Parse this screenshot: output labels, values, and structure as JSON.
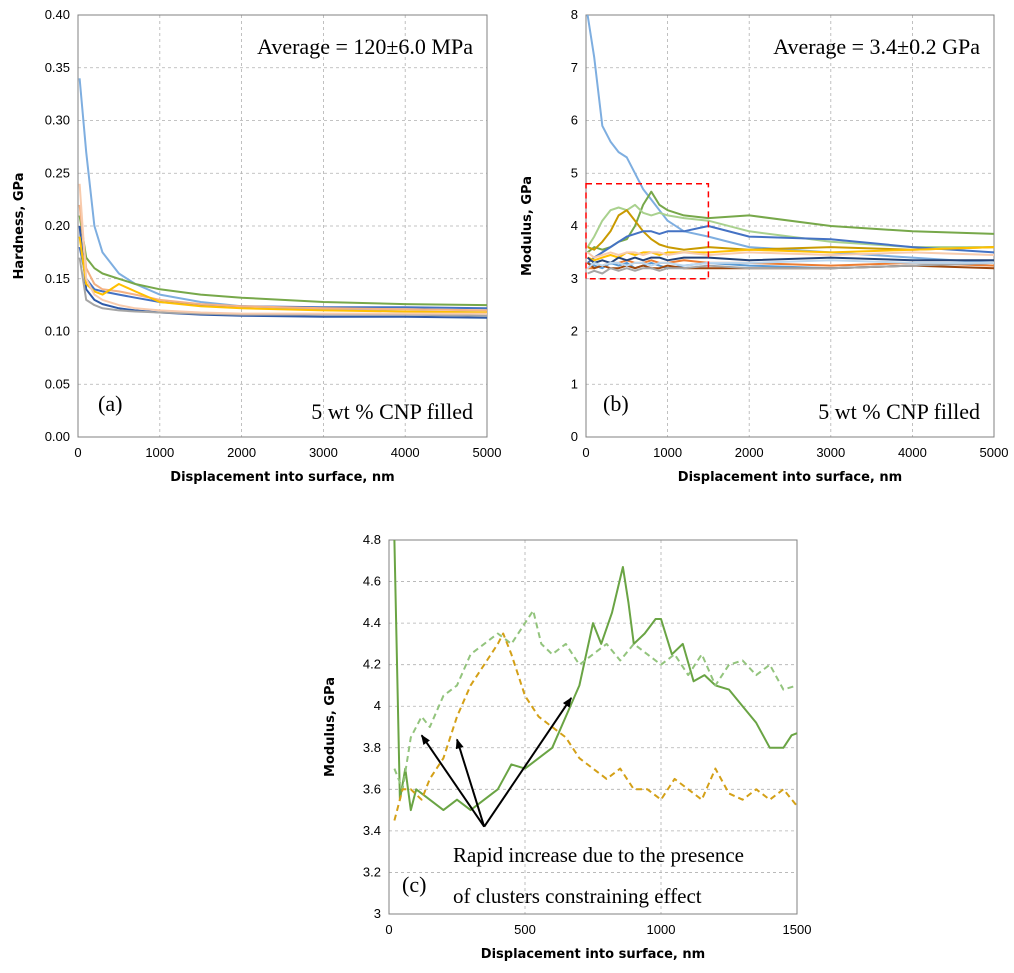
{
  "colors": {
    "a_series": [
      "#7eaee0",
      "#77a84a",
      "#4472c4",
      "#2e5aa8",
      "#f4b183",
      "#ffc000",
      "#a5a5a5",
      "#f8cbad",
      "#5b9bd5",
      "#70ad47",
      "#c9a227",
      "#9dc3e6"
    ],
    "b_series": [
      "#7eaee0",
      "#77a84a",
      "#a9d18e",
      "#c99a00",
      "#4472c4",
      "#ed7d31",
      "#ffc000",
      "#f8cbad",
      "#5b9bd5",
      "#9e480e",
      "#a5a5a5",
      "#264478",
      "#bdd7ee"
    ],
    "c_solid": "#6aa444",
    "c_dash_light": "#93c47d",
    "c_dash_gold": "#d4a017",
    "box": "#ff0000"
  },
  "chart_data": [
    {
      "id": "a",
      "type": "line",
      "xlabel": "Displacement into surface, nm",
      "ylabel": "Hardness, GPa",
      "xlim": [
        0,
        5000
      ],
      "ylim": [
        0,
        0.4
      ],
      "xticks": [
        "0",
        "1000",
        "2000",
        "3000",
        "4000",
        "5000"
      ],
      "yticks": [
        "0.00",
        "0.05",
        "0.10",
        "0.15",
        "0.20",
        "0.25",
        "0.30",
        "0.35",
        "0.40"
      ],
      "annotation_top": "Average = 120±6.0 MPa",
      "annotation_bottom": "5 wt % CNP filled",
      "panel_label": "(a)",
      "grid": true,
      "series": [
        {
          "x": [
            20,
            100,
            200,
            300,
            500,
            700,
            1000,
            1500,
            2000,
            3000,
            4000,
            5000
          ],
          "values": [
            0.34,
            0.27,
            0.2,
            0.175,
            0.155,
            0.145,
            0.135,
            0.128,
            0.124,
            0.121,
            0.119,
            0.118
          ]
        },
        {
          "x": [
            20,
            100,
            200,
            300,
            500,
            700,
            1000,
            1500,
            2000,
            3000,
            4000,
            5000
          ],
          "values": [
            0.21,
            0.17,
            0.16,
            0.155,
            0.15,
            0.145,
            0.14,
            0.135,
            0.132,
            0.128,
            0.126,
            0.125
          ]
        },
        {
          "x": [
            20,
            100,
            200,
            300,
            500,
            700,
            1000,
            1500,
            2000,
            3000,
            4000,
            5000
          ],
          "values": [
            0.18,
            0.15,
            0.14,
            0.138,
            0.135,
            0.132,
            0.128,
            0.125,
            0.124,
            0.123,
            0.123,
            0.122
          ]
        },
        {
          "x": [
            20,
            100,
            200,
            300,
            500,
            700,
            1000,
            1500,
            2000,
            3000,
            4000,
            5000
          ],
          "values": [
            0.2,
            0.14,
            0.13,
            0.126,
            0.122,
            0.12,
            0.118,
            0.116,
            0.115,
            0.114,
            0.114,
            0.113
          ]
        },
        {
          "x": [
            20,
            100,
            200,
            300,
            500,
            700,
            1000,
            1500,
            2000,
            3000,
            4000,
            5000
          ],
          "values": [
            0.22,
            0.16,
            0.145,
            0.14,
            0.138,
            0.135,
            0.13,
            0.126,
            0.124,
            0.122,
            0.121,
            0.12
          ]
        },
        {
          "x": [
            20,
            100,
            200,
            300,
            500,
            700,
            1000,
            1500,
            2000,
            3000,
            4000,
            5000
          ],
          "values": [
            0.19,
            0.145,
            0.138,
            0.135,
            0.145,
            0.138,
            0.128,
            0.124,
            0.122,
            0.12,
            0.119,
            0.118
          ]
        },
        {
          "x": [
            20,
            100,
            200,
            300,
            500,
            700,
            1000,
            1500,
            2000,
            3000,
            4000,
            5000
          ],
          "values": [
            0.17,
            0.13,
            0.125,
            0.122,
            0.12,
            0.119,
            0.118,
            0.117,
            0.116,
            0.116,
            0.116,
            0.115
          ]
        },
        {
          "x": [
            20,
            100,
            200,
            300,
            500,
            700,
            1000,
            1500,
            2000,
            3000,
            4000,
            5000
          ],
          "values": [
            0.24,
            0.15,
            0.135,
            0.13,
            0.125,
            0.122,
            0.12,
            0.118,
            0.117,
            0.117,
            0.117,
            0.117
          ]
        }
      ]
    },
    {
      "id": "b",
      "type": "line",
      "xlabel": "Displacement into surface, nm",
      "ylabel": "Modulus, GPa",
      "xlim": [
        0,
        5000
      ],
      "ylim": [
        0,
        8
      ],
      "xticks": [
        "0",
        "1000",
        "2000",
        "3000",
        "4000",
        "5000"
      ],
      "yticks": [
        "0",
        "1",
        "2",
        "3",
        "4",
        "5",
        "6",
        "7",
        "8"
      ],
      "annotation_top": "Average = 3.4±0.2 GPa",
      "annotation_bottom": "5 wt % CNP filled",
      "panel_label": "(b)",
      "grid": true,
      "highlight_box": {
        "x": [
          0,
          1500
        ],
        "y": [
          3.0,
          4.8
        ]
      },
      "series": [
        {
          "x": [
            20,
            100,
            200,
            300,
            400,
            500,
            600,
            700,
            800,
            900,
            1000,
            1200,
            1500,
            2000,
            3000,
            4000,
            5000
          ],
          "values": [
            8.0,
            7.2,
            5.9,
            5.6,
            5.4,
            5.3,
            5.0,
            4.7,
            4.5,
            4.3,
            4.1,
            3.9,
            3.8,
            3.6,
            3.5,
            3.4,
            3.3
          ]
        },
        {
          "x": [
            20,
            100,
            200,
            300,
            400,
            500,
            600,
            700,
            800,
            900,
            1000,
            1200,
            1500,
            2000,
            3000,
            4000,
            5000
          ],
          "values": [
            3.5,
            3.6,
            3.55,
            3.6,
            3.7,
            3.75,
            4.0,
            4.4,
            4.65,
            4.4,
            4.3,
            4.2,
            4.15,
            4.2,
            4.0,
            3.9,
            3.85
          ]
        },
        {
          "x": [
            20,
            100,
            200,
            300,
            400,
            500,
            600,
            700,
            800,
            900,
            1000,
            1200,
            1500,
            2000,
            3000,
            4000,
            5000
          ],
          "values": [
            3.6,
            3.8,
            4.1,
            4.3,
            4.35,
            4.3,
            4.4,
            4.25,
            4.2,
            4.25,
            4.2,
            4.15,
            4.1,
            3.9,
            3.7,
            3.6,
            3.6
          ]
        },
        {
          "x": [
            20,
            100,
            200,
            300,
            400,
            500,
            600,
            700,
            800,
            900,
            1000,
            1200,
            1500,
            2000,
            3000,
            4000,
            5000
          ],
          "values": [
            3.6,
            3.55,
            3.7,
            3.9,
            4.2,
            4.3,
            4.1,
            3.9,
            3.75,
            3.65,
            3.6,
            3.55,
            3.6,
            3.55,
            3.6,
            3.55,
            3.6
          ]
        },
        {
          "x": [
            20,
            100,
            200,
            300,
            400,
            500,
            600,
            700,
            800,
            900,
            1000,
            1200,
            1500,
            2000,
            3000,
            4000,
            5000
          ],
          "values": [
            3.3,
            3.4,
            3.5,
            3.6,
            3.7,
            3.8,
            3.85,
            3.9,
            3.9,
            3.85,
            3.9,
            3.9,
            4.0,
            3.8,
            3.75,
            3.6,
            3.5
          ]
        },
        {
          "x": [
            20,
            100,
            200,
            300,
            400,
            500,
            600,
            700,
            800,
            900,
            1000,
            1200,
            1500,
            2000,
            3000,
            4000,
            5000
          ],
          "values": [
            3.2,
            3.2,
            3.25,
            3.3,
            3.3,
            3.35,
            3.3,
            3.3,
            3.35,
            3.3,
            3.3,
            3.35,
            3.3,
            3.3,
            3.25,
            3.3,
            3.25
          ]
        },
        {
          "x": [
            20,
            100,
            200,
            300,
            400,
            500,
            600,
            700,
            800,
            900,
            1000,
            1200,
            1500,
            2000,
            3000,
            4000,
            5000
          ],
          "values": [
            3.4,
            3.35,
            3.4,
            3.45,
            3.4,
            3.5,
            3.45,
            3.5,
            3.5,
            3.45,
            3.5,
            3.5,
            3.5,
            3.55,
            3.5,
            3.55,
            3.6
          ]
        },
        {
          "x": [
            20,
            100,
            200,
            300,
            400,
            500,
            600,
            700,
            800,
            900,
            1000,
            1200,
            1500,
            2000,
            3000,
            4000,
            5000
          ],
          "values": [
            3.5,
            3.4,
            3.45,
            3.5,
            3.45,
            3.5,
            3.5,
            3.45,
            3.5,
            3.5,
            3.45,
            3.5,
            3.45,
            3.5,
            3.45,
            3.5,
            3.45
          ]
        },
        {
          "x": [
            20,
            100,
            200,
            300,
            400,
            500,
            600,
            700,
            800,
            900,
            1000,
            1200,
            1500,
            2000,
            3000,
            4000,
            5000
          ],
          "values": [
            3.3,
            3.25,
            3.2,
            3.3,
            3.25,
            3.3,
            3.2,
            3.25,
            3.3,
            3.25,
            3.2,
            3.25,
            3.3,
            3.25,
            3.2,
            3.25,
            3.3
          ]
        },
        {
          "x": [
            20,
            100,
            200,
            300,
            400,
            500,
            600,
            700,
            800,
            900,
            1000,
            1200,
            1500,
            2000,
            3000,
            4000,
            5000
          ],
          "values": [
            3.3,
            3.2,
            3.25,
            3.2,
            3.2,
            3.25,
            3.2,
            3.25,
            3.2,
            3.2,
            3.25,
            3.2,
            3.2,
            3.2,
            3.2,
            3.25,
            3.2
          ]
        },
        {
          "x": [
            20,
            100,
            200,
            300,
            400,
            500,
            600,
            700,
            800,
            900,
            1000,
            1200,
            1500,
            2000,
            3000,
            4000,
            5000
          ],
          "values": [
            3.1,
            3.15,
            3.1,
            3.2,
            3.15,
            3.2,
            3.15,
            3.2,
            3.2,
            3.15,
            3.2,
            3.2,
            3.25,
            3.2,
            3.2,
            3.25,
            3.3
          ]
        },
        {
          "x": [
            20,
            100,
            200,
            300,
            400,
            500,
            600,
            700,
            800,
            900,
            1000,
            1200,
            1500,
            2000,
            3000,
            4000,
            5000
          ],
          "values": [
            3.4,
            3.3,
            3.35,
            3.3,
            3.4,
            3.35,
            3.4,
            3.35,
            3.4,
            3.4,
            3.35,
            3.4,
            3.4,
            3.35,
            3.4,
            3.35,
            3.35
          ]
        },
        {
          "x": [
            20,
            100,
            200,
            300,
            400,
            500,
            600,
            700,
            800,
            900,
            1000,
            1200,
            1500,
            2000,
            3000,
            4000,
            5000
          ],
          "values": [
            3.2,
            3.3,
            3.25,
            3.3,
            3.3,
            3.25,
            3.3,
            3.3,
            3.25,
            3.3,
            3.3,
            3.25,
            3.3,
            3.3,
            3.35,
            3.3,
            3.3
          ]
        }
      ]
    },
    {
      "id": "c",
      "type": "line",
      "xlabel": "Displacement into surface, nm",
      "ylabel": "Modulus, GPa",
      "xlim": [
        0,
        1500
      ],
      "ylim": [
        3,
        4.8
      ],
      "xticks": [
        "0",
        "500",
        "1000",
        "1500"
      ],
      "yticks": [
        "3",
        "3.2",
        "3.4",
        "3.6",
        "3.8",
        "4",
        "4.2",
        "4.4",
        "4.6",
        "4.8"
      ],
      "panel_label": "(c)",
      "annotation_lines": [
        "Rapid increase due to the presence",
        "of clusters constraining effect"
      ],
      "arrows": {
        "origin": [
          350,
          3.42
        ],
        "targets": [
          [
            120,
            3.86
          ],
          [
            250,
            3.84
          ],
          [
            670,
            4.04
          ]
        ]
      },
      "grid": true,
      "series": [
        {
          "style": "solid",
          "x": [
            20,
            40,
            60,
            80,
            100,
            150,
            200,
            250,
            300,
            350,
            400,
            450,
            500,
            550,
            600,
            650,
            700,
            750,
            780,
            820,
            860,
            880,
            900,
            940,
            980,
            1000,
            1040,
            1080,
            1120,
            1160,
            1200,
            1250,
            1300,
            1350,
            1400,
            1450,
            1480,
            1500
          ],
          "values": [
            4.8,
            3.55,
            3.7,
            3.5,
            3.6,
            3.55,
            3.5,
            3.55,
            3.5,
            3.55,
            3.6,
            3.72,
            3.7,
            3.75,
            3.8,
            3.95,
            4.1,
            4.4,
            4.3,
            4.45,
            4.67,
            4.5,
            4.3,
            4.35,
            4.42,
            4.42,
            4.25,
            4.3,
            4.12,
            4.15,
            4.1,
            4.08,
            4.0,
            3.92,
            3.8,
            3.8,
            3.86,
            3.87
          ]
        },
        {
          "style": "dash",
          "x": [
            20,
            50,
            80,
            120,
            150,
            200,
            250,
            300,
            350,
            400,
            450,
            500,
            530,
            560,
            600,
            650,
            700,
            750,
            800,
            850,
            900,
            950,
            1000,
            1050,
            1100,
            1150,
            1200,
            1250,
            1300,
            1350,
            1400,
            1450,
            1500
          ],
          "values": [
            3.7,
            3.6,
            3.85,
            3.95,
            3.9,
            4.05,
            4.1,
            4.25,
            4.3,
            4.35,
            4.3,
            4.4,
            4.46,
            4.3,
            4.25,
            4.3,
            4.2,
            4.25,
            4.3,
            4.22,
            4.3,
            4.25,
            4.2,
            4.25,
            4.15,
            4.25,
            4.1,
            4.2,
            4.22,
            4.15,
            4.2,
            4.08,
            4.1
          ]
        },
        {
          "style": "dash",
          "x": [
            20,
            50,
            80,
            120,
            150,
            200,
            250,
            300,
            350,
            400,
            420,
            450,
            500,
            550,
            600,
            650,
            700,
            750,
            800,
            850,
            900,
            950,
            1000,
            1050,
            1100,
            1150,
            1200,
            1250,
            1300,
            1350,
            1400,
            1450,
            1500
          ],
          "values": [
            3.45,
            3.6,
            3.6,
            3.55,
            3.65,
            3.75,
            3.95,
            4.1,
            4.2,
            4.3,
            4.35,
            4.25,
            4.05,
            3.95,
            3.9,
            3.85,
            3.75,
            3.7,
            3.65,
            3.7,
            3.6,
            3.6,
            3.55,
            3.65,
            3.6,
            3.55,
            3.7,
            3.58,
            3.55,
            3.6,
            3.55,
            3.6,
            3.52
          ]
        }
      ]
    }
  ]
}
